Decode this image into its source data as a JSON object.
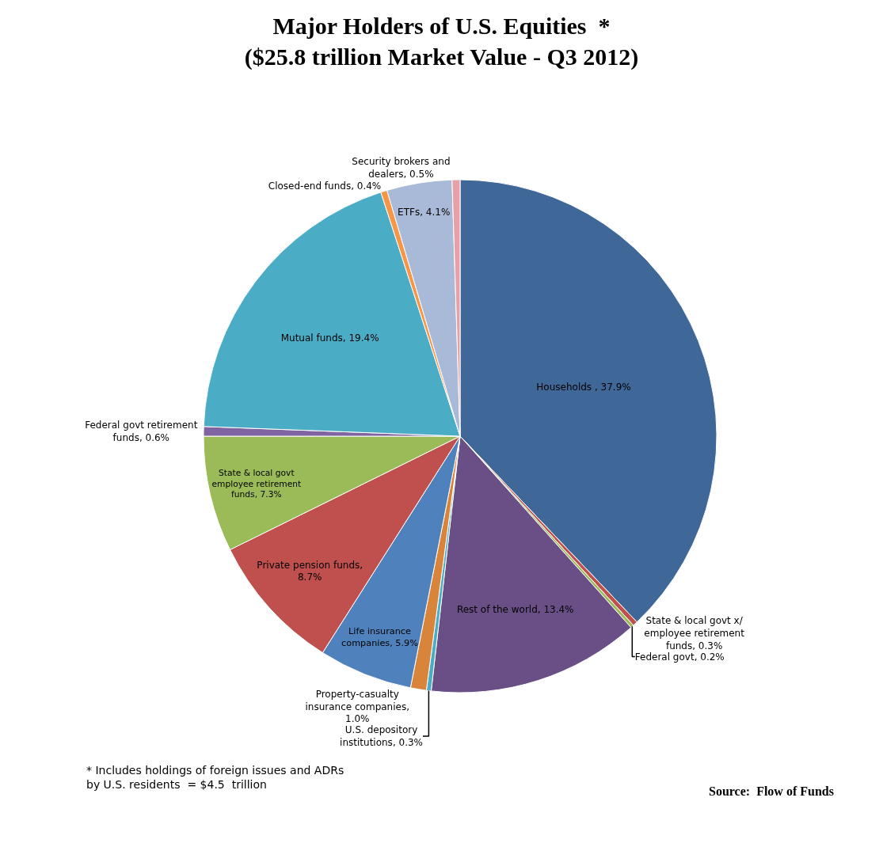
{
  "chart_data": {
    "type": "pie",
    "title": "Major Holders of U.S. Equities  *",
    "subtitle": "($25.8 trillion Market Value - Q3 2012)",
    "categories": [
      "Households , 37.9%",
      "State & local govt x/ employee retirement funds, 0.3%",
      "Federal govt, 0.2%",
      "Rest of the world, 13.4%",
      "U.S. depository institutions, 0.3%",
      "Property-casualty insurance companies, 1.0%",
      "Life insurance companies, 5.9%",
      "Private pension funds, 8.7%",
      "State & local govt employee retirement funds, 7.3%",
      "Federal govt retirement funds, 0.6%",
      "Mutual funds, 19.4%",
      "Closed-end funds, 0.4%",
      "ETFs, 4.1%",
      "Security brokers and dealers, 0.5%"
    ],
    "values": [
      37.9,
      0.3,
      0.2,
      13.4,
      0.3,
      1.0,
      5.9,
      8.7,
      7.3,
      0.6,
      19.4,
      0.4,
      4.1,
      0.5
    ],
    "colors": [
      "#3f6898",
      "#c0504d",
      "#9bbb59",
      "#6a4f86",
      "#4aacc6",
      "#d9843b",
      "#4f81bd",
      "#c0504d",
      "#9bbb59",
      "#8064a2",
      "#4bacc6",
      "#f79646",
      "#a9b9d8",
      "#e6a0a8"
    ],
    "legend": false,
    "annotations": [
      "* Includes holdings of foreign issues and ADRs by U.S. residents  = $4.5  trillion",
      "Source:  Flow of Funds"
    ]
  }
}
